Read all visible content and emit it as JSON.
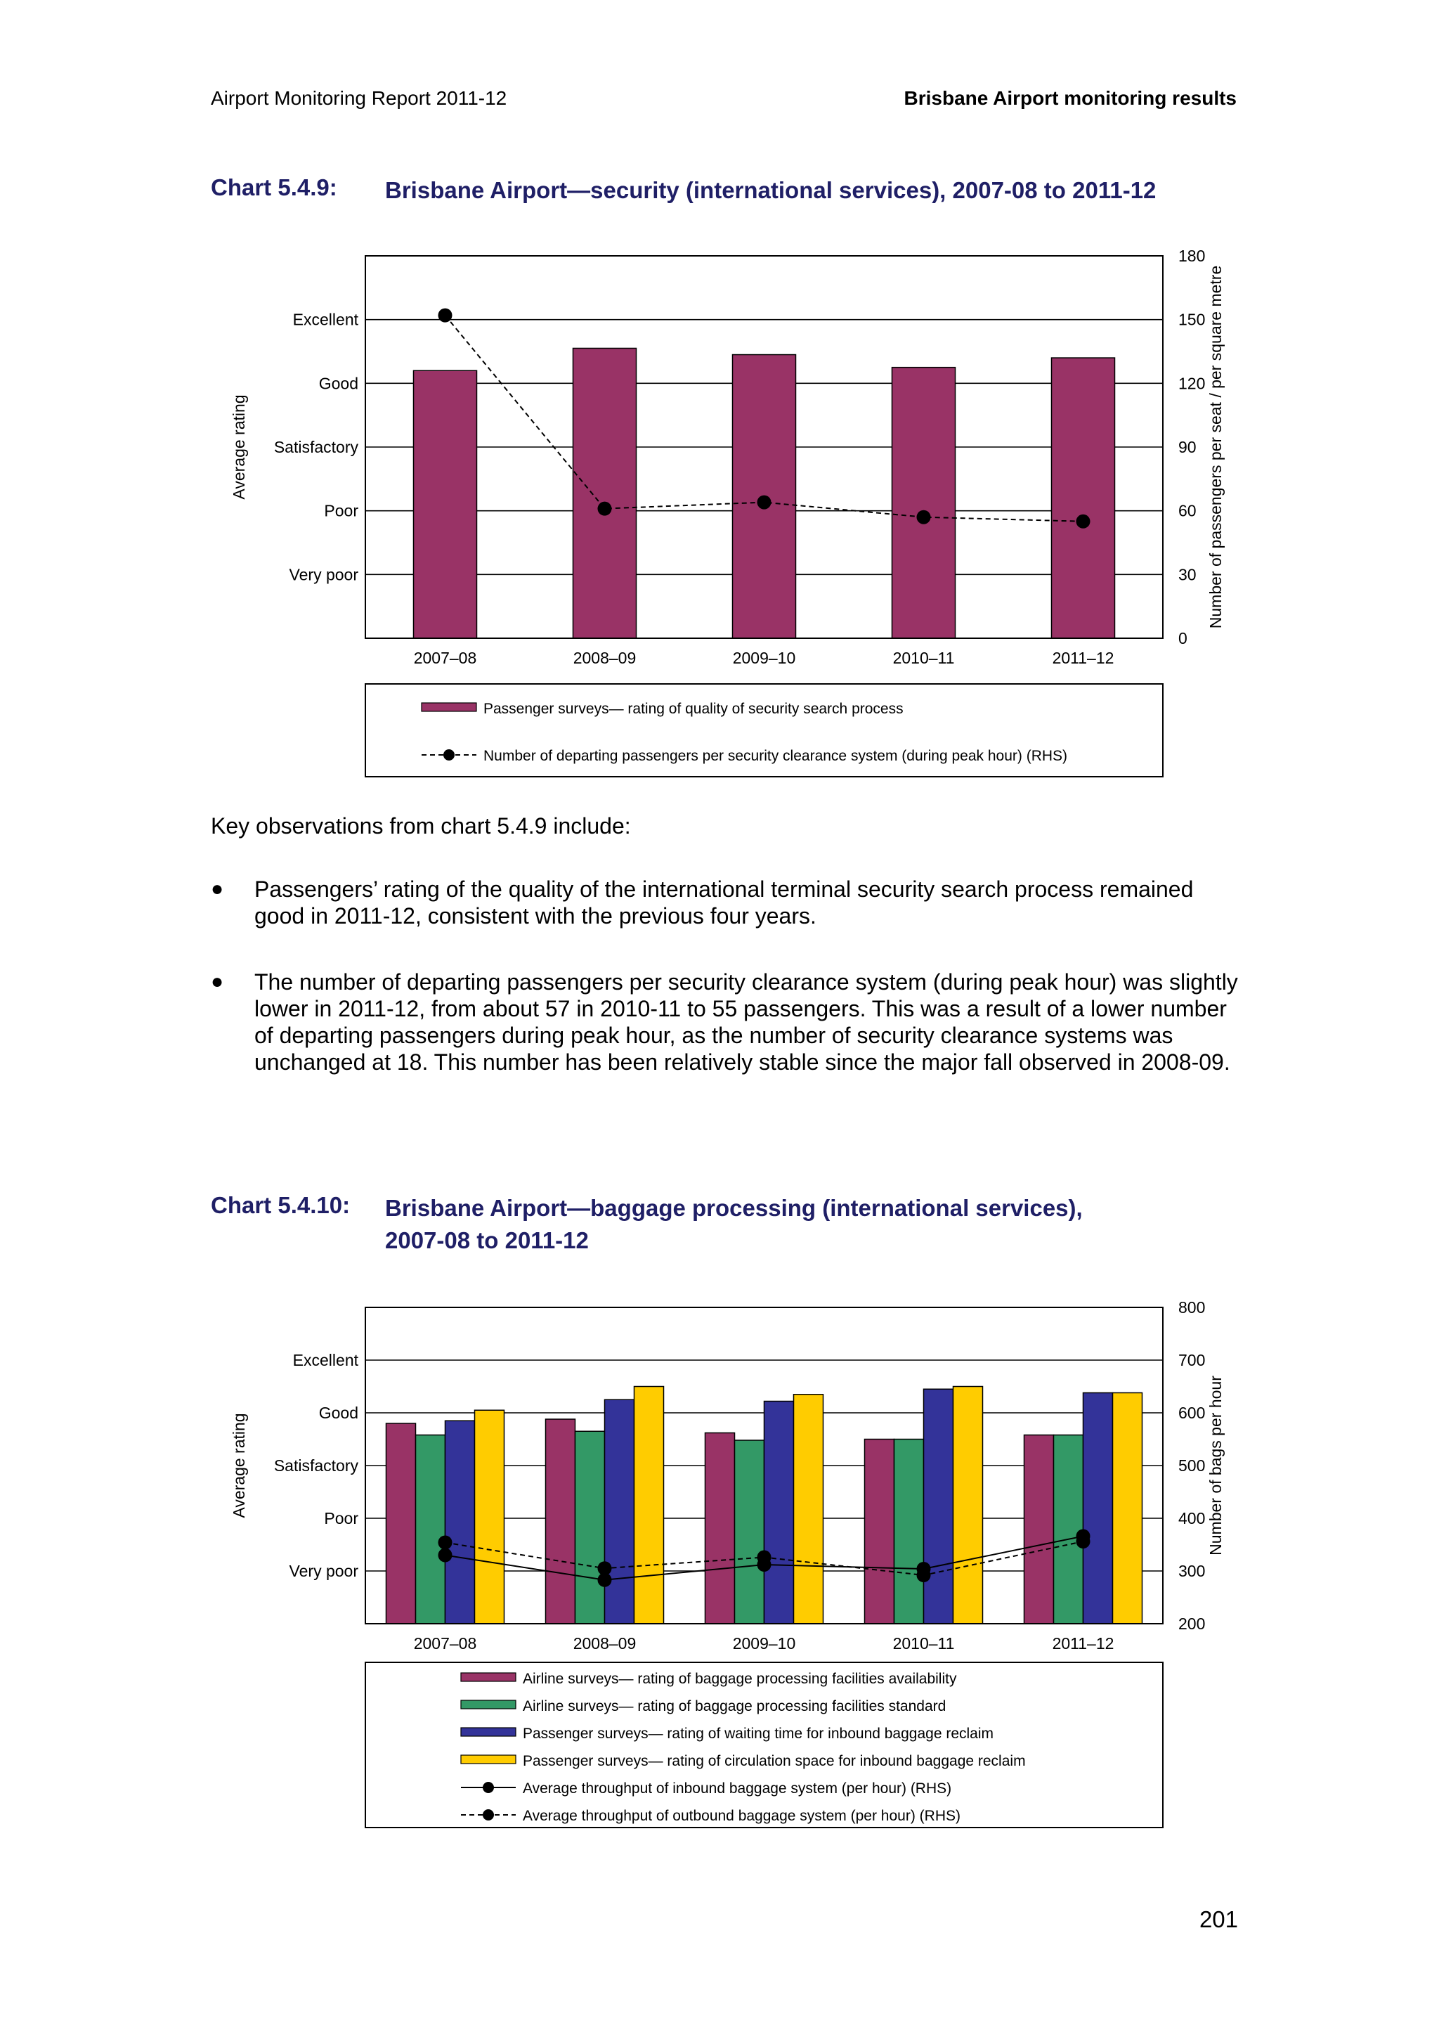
{
  "header": {
    "left": "Airport Monitoring Report 2011-12",
    "right": "Brisbane Airport monitoring results"
  },
  "chart1_title": {
    "number": "Chart 5.4.9:",
    "text": "Brisbane Airport—security (international services), 2007-08 to 2011-12"
  },
  "chart2_title": {
    "number": "Chart 5.4.10:",
    "line1": "Brisbane Airport—baggage processing (international services),",
    "line2": "2007-08 to 2011-12"
  },
  "observations": {
    "intro": "Key observations from chart 5.4.9 include:",
    "bullets": [
      "Passengers’ rating of the quality of the international terminal security search process remained good in 2011-12, consistent with the previous four years.",
      "The number of departing passengers per security clearance system (during peak hour) was slightly lower in 2011-12, from about 57 in 2010-11 to 55 passengers. This was a result of a lower number of departing passengers during peak hour, as the number of security clearance systems was unchanged at 18. This number has been relatively stable since the major fall observed in 2008-09."
    ]
  },
  "page_number": "201",
  "chart_data": [
    {
      "type": "bar",
      "categories": [
        "2007–08",
        "2008–09",
        "2009–10",
        "2010–11",
        "2011–12"
      ],
      "left_axis": {
        "label": "Average rating",
        "tick_labels": [
          "Very poor",
          "Poor",
          "Satisfactory",
          "Good",
          "Excellent"
        ],
        "tick_values": [
          1,
          2,
          3,
          4,
          5
        ],
        "range": [
          0,
          6
        ]
      },
      "right_axis": {
        "label": "Number of passengers per seat / per square metre",
        "ticks": [
          0,
          30,
          60,
          90,
          120,
          150,
          180
        ],
        "range": [
          0,
          180
        ]
      },
      "grid": true,
      "legend_position": "bottom",
      "series": [
        {
          "name": "Passenger surveys— rating of quality of security search process",
          "kind": "bar",
          "axis": "left",
          "color": "#993366",
          "values": [
            4.2,
            4.55,
            4.45,
            4.25,
            4.4
          ]
        },
        {
          "name": "Number of departing passengers per security clearance system (during peak hour) (RHS)",
          "kind": "line",
          "axis": "right",
          "color": "#000000",
          "dash": "dashed",
          "values": [
            152,
            61,
            64,
            57,
            55
          ]
        }
      ]
    },
    {
      "type": "bar",
      "categories": [
        "2007–08",
        "2008–09",
        "2009–10",
        "2010–11",
        "2011–12"
      ],
      "left_axis": {
        "label": "Average rating",
        "tick_labels": [
          "Very poor",
          "Poor",
          "Satisfactory",
          "Good",
          "Excellent"
        ],
        "tick_values": [
          1,
          2,
          3,
          4,
          5
        ],
        "range": [
          0,
          6
        ]
      },
      "right_axis": {
        "label": "Number of bags per hour",
        "ticks": [
          200,
          300,
          400,
          500,
          600,
          700,
          800
        ],
        "range": [
          200,
          800
        ]
      },
      "grid": true,
      "legend_position": "bottom",
      "series": [
        {
          "name": "Airline surveys— rating of baggage processing facilities availability",
          "kind": "bar",
          "axis": "left",
          "color": "#993366",
          "values": [
            3.8,
            3.88,
            3.62,
            3.5,
            3.58
          ]
        },
        {
          "name": "Airline surveys— rating of baggage processing facilities standard",
          "kind": "bar",
          "axis": "left",
          "color": "#339966",
          "values": [
            3.58,
            3.65,
            3.48,
            3.5,
            3.58
          ]
        },
        {
          "name": "Passenger surveys— rating of waiting time for inbound baggage reclaim",
          "kind": "bar",
          "axis": "left",
          "color": "#333399",
          "values": [
            3.85,
            4.25,
            4.22,
            4.45,
            4.38
          ]
        },
        {
          "name": "Passenger surveys— rating of circulation space for inbound baggage reclaim",
          "kind": "bar",
          "axis": "left",
          "color": "#ffcc00",
          "values": [
            4.05,
            4.5,
            4.35,
            4.5,
            4.38
          ]
        },
        {
          "name": "Average throughput of inbound baggage system (per hour) (RHS)",
          "kind": "line",
          "axis": "right",
          "color": "#000000",
          "dash": "solid",
          "values": [
            330,
            283,
            312,
            304,
            366
          ]
        },
        {
          "name": "Average throughput of outbound baggage system (per hour) (RHS)",
          "kind": "line",
          "axis": "right",
          "color": "#000000",
          "dash": "dashed",
          "values": [
            354,
            305,
            326,
            292,
            356
          ]
        }
      ]
    }
  ]
}
